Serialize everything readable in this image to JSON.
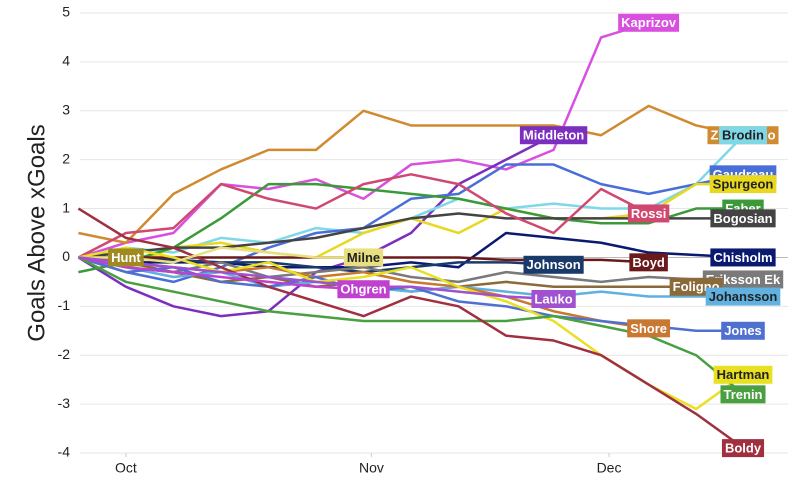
{
  "chart_data": {
    "type": "line",
    "y_label": "Goals Above xGoals",
    "x": [
      -6,
      0,
      6,
      12,
      18,
      24,
      30,
      36,
      42,
      48,
      54,
      60,
      66,
      72,
      78
    ],
    "xlim": [
      -5.8,
      83.6
    ],
    "xticks": [
      {
        "value": 0,
        "label": "Oct"
      },
      {
        "value": 31,
        "label": "Nov"
      },
      {
        "value": 61,
        "label": "Dec"
      }
    ],
    "ylim": [
      -4,
      5
    ],
    "yticks": [
      -4,
      -3,
      -2,
      -1,
      0,
      1,
      2,
      3,
      4,
      5
    ],
    "grid": true,
    "series": [
      {
        "name": "Kaprizov",
        "color": "#d94fe0",
        "values": [
          0,
          0.3,
          0.5,
          1.5,
          1.4,
          1.6,
          1.2,
          1.9,
          2.0,
          1.8,
          2.2,
          4.5,
          4.8,
          null,
          null
        ]
      },
      {
        "name": "Middleton",
        "color": "#7b2fbf",
        "values": [
          0,
          -0.6,
          -1.0,
          -1.2,
          -1.1,
          -0.3,
          0.0,
          0.5,
          1.5,
          2.0,
          2.5,
          null,
          null,
          null,
          null
        ]
      },
      {
        "name": "Zuccarello",
        "color": "#d08a30",
        "values": [
          0.5,
          0.3,
          1.3,
          1.8,
          2.2,
          2.2,
          3.0,
          2.7,
          2.7,
          2.7,
          2.7,
          2.5,
          3.1,
          2.7,
          2.5
        ]
      },
      {
        "name": "Brodin",
        "color": "#7fd8e8",
        "values": [
          0,
          0.2,
          0.1,
          0.4,
          0.3,
          0.6,
          0.5,
          0.8,
          1.2,
          1.0,
          1.1,
          1.0,
          1.0,
          1.5,
          2.5
        ]
      },
      {
        "name": "Gaudreau",
        "color": "#4a6ed8",
        "values": [
          0,
          -0.3,
          -0.5,
          -0.2,
          0.2,
          0.5,
          0.6,
          1.2,
          1.3,
          1.9,
          1.9,
          1.5,
          1.3,
          1.5,
          1.7
        ]
      },
      {
        "name": "Spurgeon",
        "color": "#e8d820",
        "values": [
          0,
          -0.2,
          0.2,
          0.3,
          0.1,
          0.0,
          0.5,
          0.8,
          0.5,
          1.0,
          0.8,
          0.8,
          0.9,
          1.5,
          1.5
        ]
      },
      {
        "name": "Faber",
        "color": "#3a9a3a",
        "values": [
          -0.3,
          -0.1,
          0.2,
          0.8,
          1.5,
          1.5,
          1.4,
          1.3,
          1.2,
          1.0,
          0.8,
          0.7,
          0.7,
          1.0,
          1.0
        ]
      },
      {
        "name": "Bogosian",
        "color": "#444444",
        "values": [
          0,
          0.1,
          0.2,
          0.2,
          0.3,
          0.4,
          0.6,
          0.8,
          0.9,
          0.8,
          0.8,
          0.8,
          0.8,
          0.8,
          0.8
        ]
      },
      {
        "name": "Rossi",
        "color": "#d04870",
        "values": [
          0,
          0.5,
          0.6,
          1.5,
          1.2,
          1.0,
          1.5,
          1.7,
          1.5,
          0.9,
          0.5,
          1.4,
          0.9,
          null,
          null
        ]
      },
      {
        "name": "Chisholm",
        "color": "#0a1a70",
        "values": [
          0,
          -0.1,
          -0.1,
          -0.1,
          -0.2,
          -0.2,
          -0.2,
          -0.1,
          -0.2,
          0.5,
          0.4,
          0.3,
          0.1,
          0.05,
          0.0
        ]
      },
      {
        "name": "Johnson",
        "color": "#1a3a6a",
        "values": [
          0,
          0,
          -0.05,
          -0.1,
          -0.1,
          -0.2,
          -0.3,
          -0.2,
          -0.1,
          -0.1,
          -0.15,
          null,
          null,
          null,
          null
        ]
      },
      {
        "name": "Boyd",
        "color": "#6a1a1a",
        "values": [
          0,
          0,
          0,
          0,
          0,
          0,
          0,
          0,
          0,
          -0.05,
          -0.05,
          -0.05,
          -0.1,
          null,
          null
        ]
      },
      {
        "name": "Eriksson Ek",
        "color": "#7a7a7a",
        "values": [
          0,
          -0.2,
          -0.3,
          -0.1,
          -0.4,
          -0.3,
          -0.2,
          -0.4,
          -0.5,
          -0.3,
          -0.4,
          -0.5,
          -0.4,
          -0.45,
          -0.45
        ]
      },
      {
        "name": "Foligno",
        "color": "#8a6a3a",
        "values": [
          0,
          -0.1,
          -0.3,
          -0.5,
          -0.4,
          -0.6,
          -0.5,
          -0.7,
          -0.6,
          -0.5,
          -0.6,
          -0.6,
          -0.6,
          -0.6,
          null
        ]
      },
      {
        "name": "Johansson",
        "color": "#60b0e0",
        "values": [
          0,
          -0.2,
          -0.4,
          -0.3,
          -0.6,
          -0.5,
          -0.6,
          -0.7,
          -0.6,
          -0.7,
          -0.8,
          -0.7,
          -0.8,
          -0.8,
          -0.8
        ]
      },
      {
        "name": "Shore",
        "color": "#c87830",
        "values": [
          0,
          -0.1,
          -0.2,
          -0.3,
          -0.2,
          -0.4,
          -0.3,
          -0.5,
          -0.6,
          -0.8,
          -1.1,
          -1.3,
          -1.45,
          null,
          null
        ]
      },
      {
        "name": "Jones",
        "color": "#5070d0",
        "values": [
          0,
          -0.3,
          -0.2,
          -0.5,
          -0.6,
          -0.4,
          -0.7,
          -0.6,
          -0.9,
          -1.0,
          -1.2,
          -1.3,
          -1.4,
          -1.5,
          -1.5
        ]
      },
      {
        "name": "Hartman",
        "color": "#e8e020",
        "values": [
          0,
          0.2,
          0.0,
          -0.3,
          -0.1,
          -0.5,
          -0.4,
          -0.2,
          -0.6,
          -0.9,
          -1.3,
          -2.0,
          -2.6,
          -3.1,
          -2.4
        ]
      },
      {
        "name": "Trenin",
        "color": "#4aa040",
        "values": [
          0,
          -0.5,
          -0.7,
          -0.9,
          -1.1,
          -1.2,
          -1.3,
          -1.3,
          -1.3,
          -1.3,
          -1.2,
          -1.4,
          -1.6,
          -2.0,
          -2.8
        ]
      },
      {
        "name": "Boldy",
        "color": "#a03040",
        "values": [
          1.0,
          0.4,
          0.2,
          -0.2,
          -0.6,
          -0.9,
          -1.2,
          -0.8,
          -1.0,
          -1.6,
          -1.7,
          -2.0,
          -2.6,
          -3.2,
          -3.9
        ]
      },
      {
        "name": "Hunt",
        "color": "#a08a20",
        "values": [
          0,
          0,
          null,
          null,
          null,
          null,
          null,
          null,
          null,
          null,
          null,
          null,
          null,
          null,
          null
        ]
      },
      {
        "name": "Milne",
        "color": "#e8e080",
        "values": [
          0,
          0,
          -0.1,
          0.2,
          0.1,
          0.0,
          0,
          null,
          null,
          null,
          null,
          null,
          null,
          null,
          null
        ]
      },
      {
        "name": "Ohgren",
        "color": "#c040d0",
        "values": [
          0,
          -0.2,
          -0.3,
          -0.4,
          -0.5,
          -0.6,
          -0.65,
          null,
          null,
          null,
          null,
          null,
          null,
          null,
          null
        ]
      },
      {
        "name": "Lauko",
        "color": "#a050d0",
        "values": [
          0,
          -0.1,
          -0.2,
          -0.3,
          -0.4,
          -0.5,
          -0.6,
          -0.6,
          -0.7,
          -0.8,
          -0.85,
          null,
          null,
          null,
          null
        ]
      }
    ]
  }
}
